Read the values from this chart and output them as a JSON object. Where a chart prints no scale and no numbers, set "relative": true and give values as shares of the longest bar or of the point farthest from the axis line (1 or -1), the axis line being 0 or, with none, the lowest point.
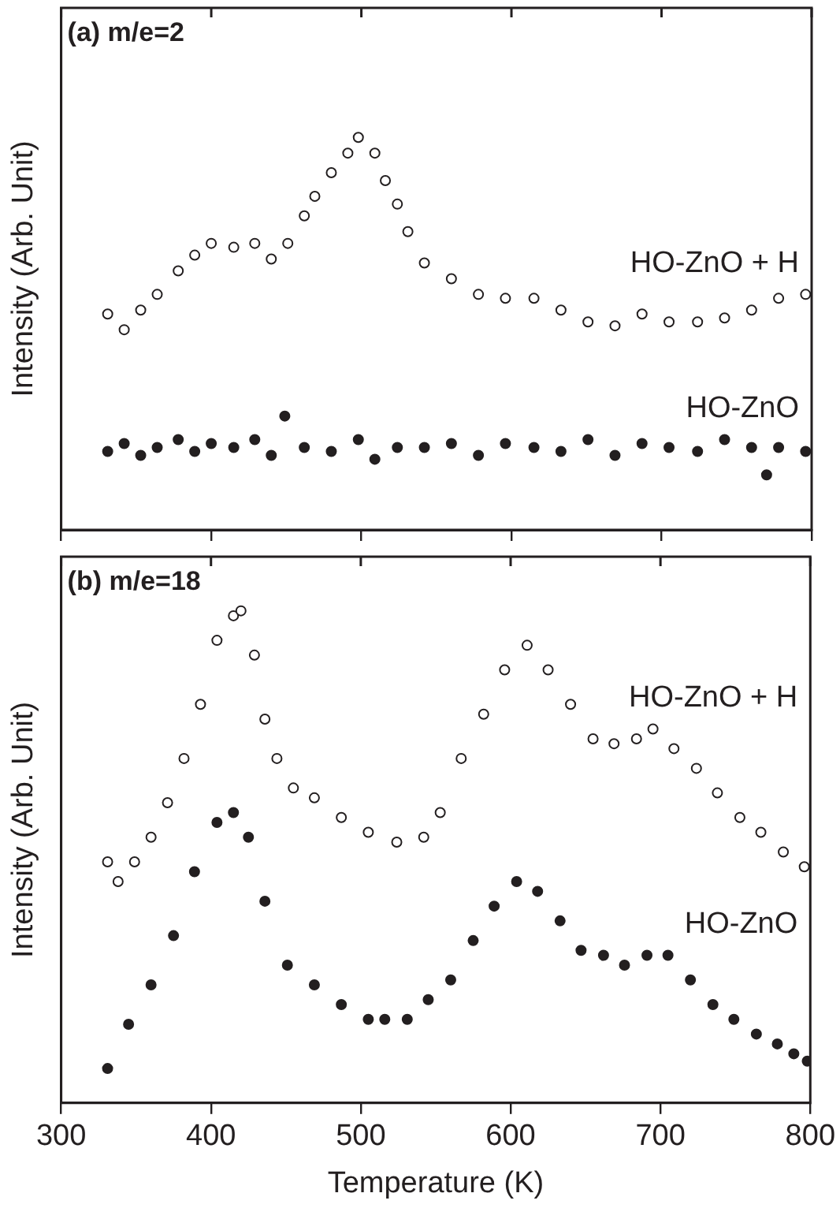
{
  "chart_data": [
    {
      "type": "scatter",
      "title": "(a) m/e=2",
      "ylabel": "Intensity (Arb. Unit)",
      "relative": true,
      "xlim": [
        300,
        800
      ],
      "xticks": [
        300,
        400,
        500,
        600,
        700,
        800
      ],
      "tick_labels": false,
      "marker": "circle",
      "grid": false,
      "legend": false,
      "series": [
        {
          "name": "HO-ZnO + H",
          "color": "#231f20",
          "x": [
            331,
            342,
            353,
            364,
            378,
            389,
            400,
            415,
            429,
            440,
            451,
            462,
            469,
            480,
            491,
            498,
            509,
            516,
            524,
            531,
            542,
            560,
            578,
            596,
            615,
            633,
            651,
            669,
            687,
            705,
            724,
            742,
            760,
            778,
            796
          ],
          "values": [
            0.55,
            0.51,
            0.56,
            0.6,
            0.66,
            0.7,
            0.73,
            0.72,
            0.73,
            0.69,
            0.73,
            0.8,
            0.85,
            0.91,
            0.96,
            1,
            0.96,
            0.89,
            0.83,
            0.76,
            0.68,
            0.64,
            0.6,
            0.59,
            0.59,
            0.56,
            0.53,
            0.52,
            0.55,
            0.53,
            0.53,
            0.54,
            0.56,
            0.59,
            0.6
          ]
        },
        {
          "name": "HO-ZnO",
          "color": "#231f20",
          "x": [
            331,
            342,
            353,
            364,
            378,
            389,
            400,
            415,
            429,
            440,
            449,
            462,
            480,
            498,
            509,
            524,
            542,
            560,
            578,
            596,
            615,
            633,
            651,
            669,
            687,
            705,
            724,
            742,
            760,
            770,
            778,
            796
          ],
          "values": [
            0.2,
            0.22,
            0.19,
            0.21,
            0.23,
            0.2,
            0.22,
            0.21,
            0.23,
            0.19,
            0.29,
            0.21,
            0.2,
            0.23,
            0.18,
            0.21,
            0.21,
            0.22,
            0.19,
            0.22,
            0.21,
            0.2,
            0.23,
            0.19,
            0.22,
            0.21,
            0.2,
            0.23,
            0.21,
            0.14,
            0.21,
            0.2
          ]
        }
      ]
    },
    {
      "type": "scatter",
      "title": "(b) m/e=18",
      "xlabel": "Temperature (K)",
      "ylabel": "Intensity (Arb. Unit)",
      "relative": true,
      "xlim": [
        300,
        800
      ],
      "xticks": [
        300,
        400,
        500,
        600,
        700,
        800
      ],
      "tick_labels": "x",
      "marker": "circle",
      "grid": false,
      "legend": false,
      "series": [
        {
          "name": "HO-ZnO + H",
          "color": "#231f20",
          "x": [
            331,
            338,
            349,
            360,
            371,
            382,
            393,
            404,
            415,
            420,
            429,
            436,
            444,
            455,
            469,
            487,
            505,
            524,
            542,
            553,
            567,
            582,
            596,
            611,
            625,
            640,
            655,
            669,
            684,
            695,
            709,
            724,
            738,
            753,
            767,
            782,
            796
          ],
          "values": [
            0.49,
            0.45,
            0.49,
            0.54,
            0.61,
            0.7,
            0.81,
            0.94,
            0.99,
            1,
            0.91,
            0.78,
            0.7,
            0.64,
            0.62,
            0.58,
            0.55,
            0.53,
            0.54,
            0.59,
            0.7,
            0.79,
            0.88,
            0.93,
            0.88,
            0.81,
            0.74,
            0.73,
            0.74,
            0.76,
            0.72,
            0.68,
            0.63,
            0.58,
            0.55,
            0.51,
            0.48
          ]
        },
        {
          "name": "HO-ZnO",
          "color": "#231f20",
          "x": [
            331,
            345,
            360,
            375,
            389,
            404,
            415,
            425,
            436,
            451,
            469,
            487,
            505,
            516,
            531,
            545,
            560,
            575,
            589,
            604,
            618,
            633,
            647,
            662,
            676,
            691,
            705,
            720,
            735,
            749,
            764,
            778,
            789,
            798
          ],
          "values": [
            0.07,
            0.16,
            0.24,
            0.34,
            0.47,
            0.57,
            0.59,
            0.54,
            0.41,
            0.28,
            0.24,
            0.2,
            0.17,
            0.17,
            0.17,
            0.21,
            0.25,
            0.33,
            0.4,
            0.45,
            0.43,
            0.37,
            0.31,
            0.3,
            0.28,
            0.3,
            0.3,
            0.25,
            0.2,
            0.17,
            0.14,
            0.12,
            0.1,
            0.085
          ]
        }
      ]
    }
  ]
}
